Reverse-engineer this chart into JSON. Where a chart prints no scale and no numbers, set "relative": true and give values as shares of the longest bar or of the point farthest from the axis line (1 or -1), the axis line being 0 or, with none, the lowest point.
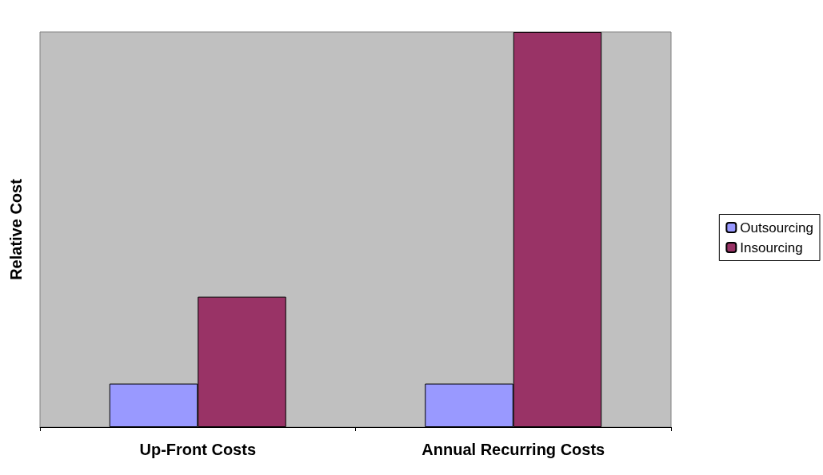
{
  "chart_data": {
    "type": "bar",
    "relative": true,
    "ylabel": "Relative Cost",
    "categories": [
      "Up-Front Costs",
      "Annual Recurring Costs"
    ],
    "series": [
      {
        "name": "Outsourcing",
        "color": "#9999ff",
        "values": [
          0.11,
          0.11
        ]
      },
      {
        "name": "Insourcing",
        "color": "#993366",
        "values": [
          0.33,
          1
        ]
      }
    ],
    "legend": "right",
    "grid": false
  }
}
